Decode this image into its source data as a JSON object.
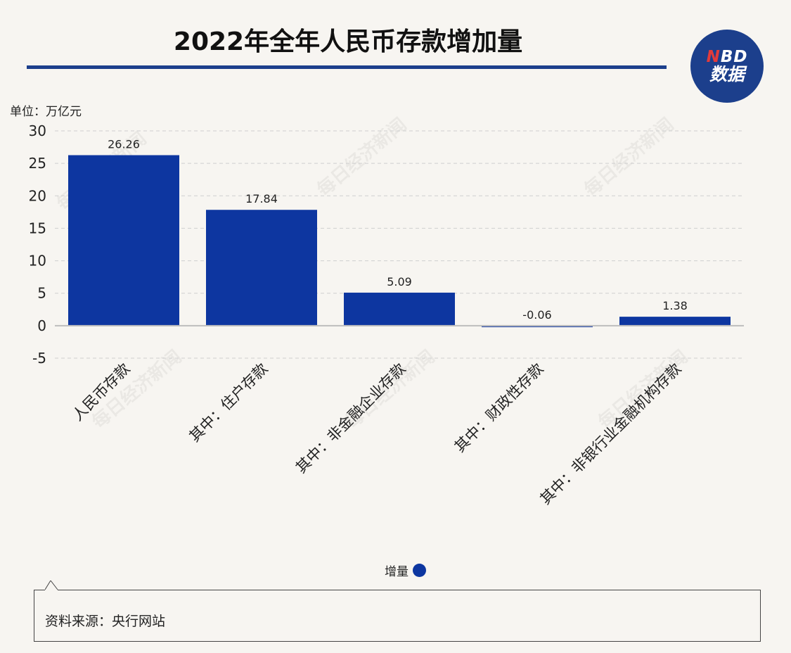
{
  "header": {
    "title": "2022年全年人民币存款增加量",
    "logo_line1_n": "N",
    "logo_line1_rest": "BD",
    "logo_line2": "数据"
  },
  "unit_label": "单位：万亿元",
  "legend_label": "增量",
  "source": "资料来源：央行网站",
  "watermark": "每日经济新闻",
  "colors": {
    "bar": "#0d36a0",
    "brand": "#1c3f8c",
    "background": "#f7f5f1"
  },
  "chart_data": {
    "type": "bar",
    "title": "2022年全年人民币存款增加量",
    "ylabel": "单位：万亿元",
    "xlabel": "",
    "ylim": [
      -5,
      30
    ],
    "yticks": [
      30,
      25,
      20,
      15,
      10,
      5,
      0,
      -5
    ],
    "grid": true,
    "legend_position": "bottom-center",
    "categories": [
      "人民币存款",
      "其中：住户存款",
      "其中：非金融企业存款",
      "其中：财政性存款",
      "其中：非银行业金融机构存款"
    ],
    "series": [
      {
        "name": "增量",
        "values": [
          26.26,
          17.84,
          5.09,
          -0.06,
          1.38
        ]
      }
    ],
    "data_labels": [
      "26.26",
      "17.84",
      "5.09",
      "-0.06",
      "1.38"
    ]
  }
}
